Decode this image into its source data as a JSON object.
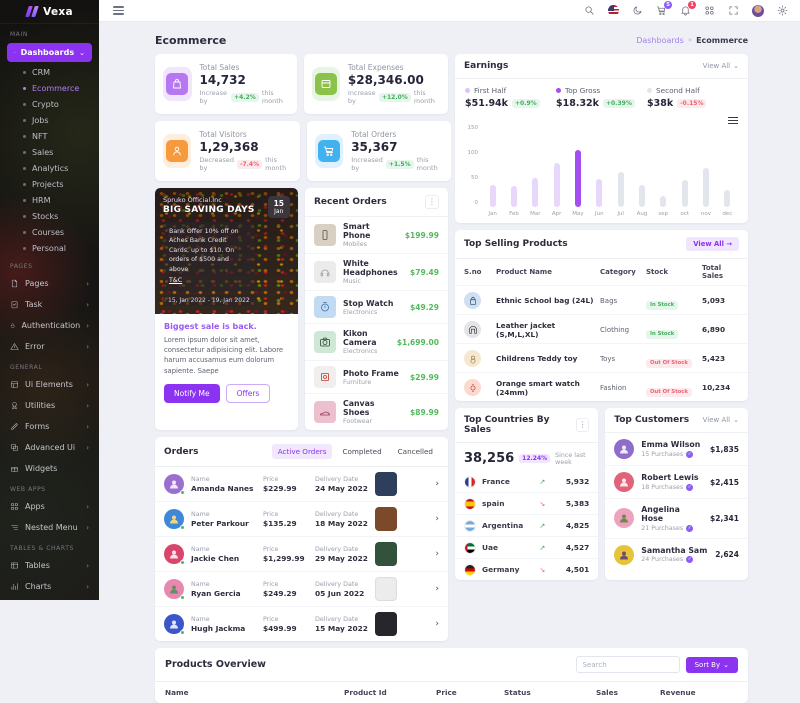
{
  "brand": {
    "name": "Vexa",
    "logo_text": "Vexa"
  },
  "topbar": {
    "cart_badge": "5",
    "bell_badge": "1"
  },
  "page_title": "Ecommerce",
  "breadcrumb": {
    "parent": "Dashboards",
    "separator": "»",
    "current": "Ecommerce"
  },
  "sidebar": {
    "section_main": "Main",
    "dashboards": "Dashboards",
    "children": [
      "CRM",
      "Ecommerce",
      "Crypto",
      "Jobs",
      "NFT",
      "Sales",
      "Analytics",
      "Projects",
      "HRM",
      "Stocks",
      "Courses",
      "Personal"
    ],
    "section_pages": "Pages",
    "pages_items": [
      "Pages",
      "Task",
      "Authentication",
      "Error"
    ],
    "section_general": "General",
    "general_items": [
      "Ui Elements",
      "Utilities",
      "Forms",
      "Advanced Ui",
      "Widgets"
    ],
    "section_webapps": "Web Apps",
    "webapps_items": [
      "Apps",
      "Nested Menu"
    ],
    "section_tables": "Tables & Charts",
    "tables_items": [
      "Tables",
      "Charts"
    ]
  },
  "stats": [
    {
      "label": "Total Sales",
      "value": "14,732",
      "change_prefix": "Increase by",
      "change": "+4.2%",
      "change_suffix": "this month"
    },
    {
      "label": "Total Expenses",
      "value": "$28,346.00",
      "change_prefix": "Increase by",
      "change": "+12.0%",
      "change_suffix": "this month"
    },
    {
      "label": "Total Visitors",
      "value": "1,29,368",
      "change_prefix": "Decreased by",
      "change": "-7.4%",
      "change_suffix": "this month"
    },
    {
      "label": "Total Orders",
      "value": "35,367",
      "change_prefix": "Increased by",
      "change": "+1.5%",
      "change_suffix": "this month"
    }
  ],
  "promo": {
    "brand_line": "Spruko Official.Inc",
    "title": "BIG SAVING DAYS",
    "date_day": "15",
    "date_month": "Jan",
    "offer_text": "Bank Offer 10% off on Aches Bank Credit Cards, up to $10. On orders of $500 and above",
    "tnc": "T&C",
    "date_range": "15, Jan 2022 - 19, Jan 2022",
    "headline": "Biggest sale is back.",
    "body": "Lorem ipsum dolor sit amet, consectetur adipisicing elit. Labore harum accusamus eum dolorum sapiente. Saepe",
    "notify_label": "Notify Me",
    "offers_label": "Offers"
  },
  "recent_orders": {
    "title": "Recent Orders",
    "items": [
      {
        "name": "Smart Phone",
        "category": "Mobiles",
        "price": "$199.99"
      },
      {
        "name": "White Headphones",
        "category": "Music",
        "price": "$79.49"
      },
      {
        "name": "Stop Watch",
        "category": "Electronics",
        "price": "$49.29"
      },
      {
        "name": "Kikon Camera",
        "category": "Electronics",
        "price": "$1,699.00"
      },
      {
        "name": "Photo Frame",
        "category": "Furniture",
        "price": "$29.99"
      },
      {
        "name": "Canvas Shoes",
        "category": "Footwear",
        "price": "$89.99"
      }
    ]
  },
  "orders": {
    "title": "Orders",
    "tabs": [
      "Active Orders",
      "Completed",
      "Cancelled"
    ],
    "name_label": "Name",
    "price_label": "Price",
    "date_label": "Delivery Date",
    "rows": [
      {
        "name": "Amanda Nanes",
        "price": "$229.99",
        "date": "24 May 2022"
      },
      {
        "name": "Peter Parkour",
        "price": "$135.29",
        "date": "18 May 2022"
      },
      {
        "name": "Jackie Chen",
        "price": "$1,299.99",
        "date": "29 May 2022"
      },
      {
        "name": "Ryan Gercia",
        "price": "$249.29",
        "date": "05 Jun 2022"
      },
      {
        "name": "Hugh Jackma",
        "price": "$499.99",
        "date": "15 May 2022"
      }
    ]
  },
  "earnings": {
    "title": "Earnings",
    "view_all": "View All",
    "legend": [
      {
        "name": "First Half",
        "value": "$51.94k",
        "change": "+0.9%"
      },
      {
        "name": "Top Gross",
        "value": "$18.32k",
        "change": "+0.39%"
      },
      {
        "name": "Second Half",
        "value": "$38k",
        "change": "-0.15%"
      }
    ]
  },
  "chart_data": {
    "type": "bar",
    "title": "Earnings",
    "categories": [
      "Jan",
      "Feb",
      "Mar",
      "Apr",
      "May",
      "Jun",
      "Jul",
      "Aug",
      "sep",
      "oct",
      "nov",
      "dec"
    ],
    "values": [
      42,
      40,
      55,
      85,
      110,
      53,
      68,
      42,
      22,
      52,
      75,
      32
    ],
    "bar_colors": [
      "#e6d7fb",
      "#e6d7fb",
      "#e6d7fb",
      "#e6d7fb",
      "#a34df3",
      "#e6d7fb",
      "#e3e5ec",
      "#e3e5ec",
      "#e3e5ec",
      "#e3e5ec",
      "#e3e5ec",
      "#e3e5ec"
    ],
    "series_note": "First Half = purple bars (Jan–Jun), Top Gross = May highlighted bar, Second Half = grey bars (Jul–Dec)",
    "xlabel": "",
    "ylabel": "",
    "ylim": [
      0,
      150
    ],
    "yticks": [
      150,
      100,
      50,
      0
    ],
    "grid": false,
    "legend_position": "top"
  },
  "top_selling": {
    "title": "Top Selling Products",
    "view_all": "View All",
    "columns": [
      "S.no",
      "Product Name",
      "Category",
      "Stock",
      "Total Sales"
    ],
    "rows": [
      {
        "name": "Ethnic School bag (24L)",
        "category": "Bags",
        "stock": "In Stock",
        "sales": "5,093"
      },
      {
        "name": "Leather jacket (S,M,L,XL)",
        "category": "Clothing",
        "stock": "In Stock",
        "sales": "6,890"
      },
      {
        "name": "Childrens Teddy toy",
        "category": "Toys",
        "stock": "Out Of Stock",
        "sales": "5,423"
      },
      {
        "name": "Orange smart watch (24mm)",
        "category": "Fashion",
        "stock": "Out Of Stock",
        "sales": "10,234"
      }
    ]
  },
  "countries": {
    "title": "Top Countries By Sales",
    "total": "38,256",
    "badge": "12.24%",
    "note": "Since last week",
    "rows": [
      {
        "name": "France",
        "value": "5,932",
        "trend": "up"
      },
      {
        "name": "spain",
        "value": "5,383",
        "trend": "down"
      },
      {
        "name": "Argentina",
        "value": "4,825",
        "trend": "up"
      },
      {
        "name": "Uae",
        "value": "4,527",
        "trend": "up"
      },
      {
        "name": "Germany",
        "value": "4,501",
        "trend": "down"
      }
    ]
  },
  "customers": {
    "title": "Top Customers",
    "view_all": "View All",
    "rows": [
      {
        "name": "Emma Wilson",
        "purchases": "15 Purchases",
        "amount": "$1,835"
      },
      {
        "name": "Robert Lewis",
        "purchases": "18 Purchases",
        "amount": "$2,415"
      },
      {
        "name": "Angelina Hose",
        "purchases": "21 Purchases",
        "amount": "$2,341"
      },
      {
        "name": "Samantha Sam",
        "purchases": "24 Purchases",
        "amount": "2,624"
      }
    ]
  },
  "products_overview": {
    "title": "Products Overview",
    "search_placeholder": "Search",
    "sort_label": "Sort By",
    "columns": [
      "Name",
      "Product Id",
      "Price",
      "Status",
      "Sales",
      "Revenue"
    ]
  },
  "colors": {
    "accent": "#8b33f1",
    "positive": "#3fae5a",
    "negative": "#ef5f73",
    "page_bg": "#eef0f6",
    "sidebar_bg": "#17161a"
  }
}
